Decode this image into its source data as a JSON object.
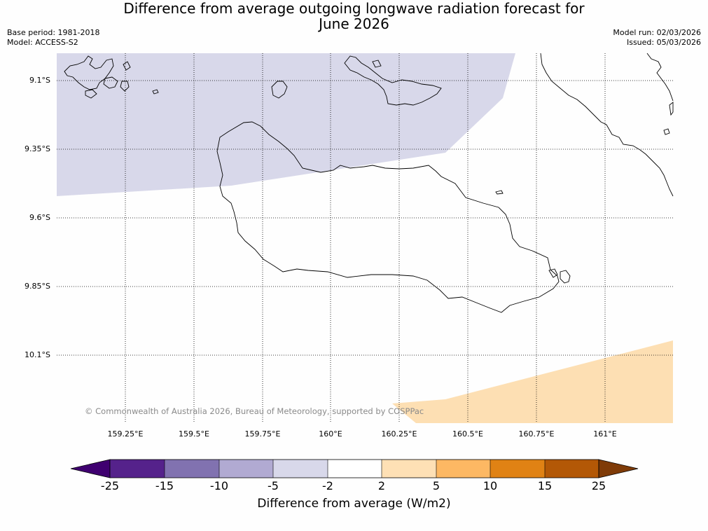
{
  "title": {
    "line1": "Difference from average outgoing longwave radiation forecast for",
    "line2": "June 2026"
  },
  "meta_left": {
    "base_period": "Base period: 1981-2018",
    "model": "Model: ACCESS-S2"
  },
  "meta_right": {
    "model_run": "Model run: 02/03/2026",
    "issued": "Issued: 05/03/2026"
  },
  "map": {
    "lat_labels": [
      "9.1°S",
      "9.35°S",
      "9.6°S",
      "9.85°S",
      "10.1°S"
    ],
    "lon_labels": [
      "159.25°E",
      "159.5°E",
      "159.75°E",
      "160°E",
      "160.25°E",
      "160.5°E",
      "160.75°E",
      "161°E"
    ],
    "copyright": "© Commonwealth of Australia 2026, Bureau of Meteorology, supported by COSPPac",
    "colors": {
      "negative_fill": "#d8d8ea",
      "positive_fill": "#fddfb3",
      "coastline": "#000000",
      "grid": "#000000"
    }
  },
  "colorbar": {
    "ticks": [
      "-25",
      "-15",
      "-10",
      "-5",
      "-2",
      "2",
      "5",
      "10",
      "15",
      "25"
    ],
    "colors": [
      "#3f0070",
      "#55228b",
      "#8172b0",
      "#b1aad2",
      "#d8d8ea",
      "#ffffff",
      "#fee0b5",
      "#fdb863",
      "#e08214",
      "#b35806",
      "#7f3b08"
    ],
    "label": "Difference from average (W/m2)"
  }
}
